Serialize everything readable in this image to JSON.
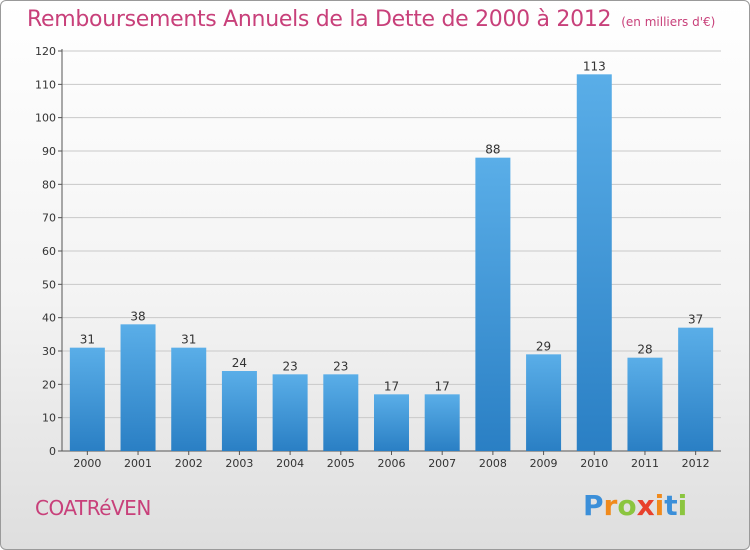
{
  "header": {
    "title": "Remboursements Annuels de la Dette de 2000 à 2012",
    "subtitle": "(en milliers d'€)"
  },
  "footer": {
    "commune": "COATRéVEN",
    "brand": "Proxiti"
  },
  "colors": {
    "title": "#c8407a",
    "bar": "#3a93d6",
    "brand_letters": [
      "#3b8fd9",
      "#f08a1c",
      "#8bc53f",
      "#e8412c",
      "#f08a1c",
      "#3b8fd9",
      "#8bc53f"
    ]
  },
  "chart_data": {
    "type": "bar",
    "categories": [
      "2000",
      "2001",
      "2002",
      "2003",
      "2004",
      "2005",
      "2006",
      "2007",
      "2008",
      "2009",
      "2010",
      "2011",
      "2012"
    ],
    "values": [
      31,
      38,
      31,
      24,
      23,
      23,
      17,
      17,
      88,
      29,
      113,
      28,
      37
    ],
    "title": "Remboursements Annuels de la Dette de 2000 à 2012",
    "subtitle": "(en milliers d'€)",
    "ylim": [
      0,
      120
    ],
    "yticks": [
      0,
      10,
      20,
      30,
      40,
      50,
      60,
      70,
      80,
      90,
      100,
      110,
      120
    ],
    "grid": true,
    "data_labels": true
  }
}
